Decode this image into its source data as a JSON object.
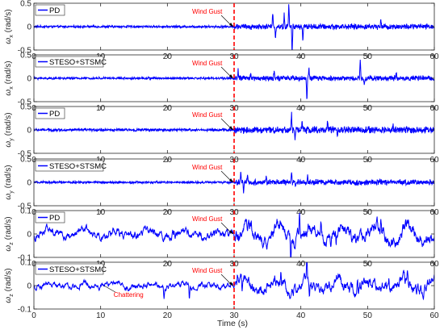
{
  "figure": {
    "xlabel": "Time (s)",
    "colors": {
      "signal": "#0000ff",
      "gust_line": "#ff0000",
      "annotation": "#ff0000",
      "axes": "#262626",
      "background": "#ffffff"
    }
  },
  "chart_data": [
    {
      "type": "line",
      "ylabel_main": "ω",
      "ylabel_sub": "x",
      "ylabel_unit": "(rad/s)",
      "legend": "PD",
      "legend_position": "top-left",
      "annotation": "Wind Gust",
      "xlim": [
        0,
        60
      ],
      "ylim": [
        -0.5,
        0.5
      ],
      "xticks": [
        0,
        10,
        20,
        30,
        40,
        50,
        60
      ],
      "xtick_labels": [
        "0",
        "10",
        "20",
        "30",
        "40",
        "50",
        "60"
      ],
      "yticks": [
        0.5,
        0,
        -0.5
      ],
      "ytick_labels": [
        "0.5",
        "0",
        "-0.5"
      ],
      "gust_time": 30,
      "signal": {
        "pre_amp": 0.025,
        "post_amp": 0.06,
        "spikes": [
          [
            35.8,
            0.35
          ],
          [
            36.2,
            -0.25
          ],
          [
            37.5,
            0.25
          ],
          [
            38.2,
            0.5
          ],
          [
            38.7,
            -0.6
          ],
          [
            40.3,
            -0.3
          ],
          [
            52.0,
            0.18
          ]
        ]
      }
    },
    {
      "type": "line",
      "ylabel_main": "ω",
      "ylabel_sub": "x",
      "ylabel_unit": "(rad/s)",
      "legend": "STESO+STSMC",
      "legend_position": "top-left",
      "annotation": "Wind Gust",
      "xlim": [
        0,
        60
      ],
      "ylim": [
        -0.5,
        0.5
      ],
      "xticks": [
        0,
        10,
        20,
        30,
        40,
        50,
        60
      ],
      "xtick_labels": [
        "0",
        "10",
        "20",
        "30",
        "40",
        "50",
        "60"
      ],
      "yticks": [
        0.5,
        0,
        -0.5
      ],
      "ytick_labels": [
        "0.5",
        "0",
        "-0.5"
      ],
      "gust_time": 30,
      "signal": {
        "pre_amp": 0.025,
        "post_amp": 0.055,
        "spikes": [
          [
            30.6,
            0.18
          ],
          [
            32.5,
            0.15
          ],
          [
            36.0,
            0.2
          ],
          [
            40.9,
            -0.5
          ],
          [
            41.2,
            0.22
          ],
          [
            48.9,
            0.4
          ],
          [
            49.5,
            -0.12
          ],
          [
            54.3,
            0.12
          ]
        ]
      }
    },
    {
      "type": "line",
      "ylabel_main": "ω",
      "ylabel_sub": "y",
      "ylabel_unit": "(rad/s)",
      "legend": "PD",
      "legend_position": "top-left",
      "annotation": "Wind Gust",
      "xlim": [
        0,
        60
      ],
      "ylim": [
        -0.5,
        0.5
      ],
      "xticks": [
        0,
        10,
        20,
        30,
        40,
        50,
        60
      ],
      "xtick_labels": [
        "0",
        "10",
        "20",
        "30",
        "40",
        "50",
        "60"
      ],
      "yticks": [
        0.5,
        0,
        -0.5
      ],
      "ytick_labels": [
        "0.5",
        "0",
        "-0.5"
      ],
      "gust_time": 30,
      "signal": {
        "pre_amp": 0.03,
        "post_amp": 0.075,
        "spikes": [
          [
            38.6,
            0.35
          ],
          [
            39.1,
            -0.2
          ],
          [
            40.2,
            0.2
          ],
          [
            44.0,
            0.15
          ],
          [
            45.5,
            -0.15
          ],
          [
            53.8,
            0.12
          ]
        ]
      }
    },
    {
      "type": "line",
      "ylabel_main": "ω",
      "ylabel_sub": "y",
      "ylabel_unit": "(rad/s)",
      "legend": "STESO+STSMC",
      "legend_position": "top-left",
      "annotation": "Wind Gust",
      "xlim": [
        0,
        60
      ],
      "ylim": [
        -0.5,
        0.5
      ],
      "xticks": [
        0,
        10,
        20,
        30,
        40,
        50,
        60
      ],
      "xtick_labels": [
        "0",
        "10",
        "20",
        "30",
        "40",
        "50",
        "60"
      ],
      "yticks": [
        0.5,
        0,
        -0.5
      ],
      "ytick_labels": [
        "0.5",
        "0",
        "-0.5"
      ],
      "gust_time": 30,
      "signal": {
        "pre_amp": 0.025,
        "post_amp": 0.06,
        "spikes": [
          [
            31.0,
            0.25
          ],
          [
            31.4,
            -0.2
          ],
          [
            32.0,
            0.18
          ],
          [
            34.8,
            0.12
          ],
          [
            38.6,
            0.28
          ],
          [
            39.2,
            -0.15
          ],
          [
            41.0,
            0.15
          ]
        ]
      }
    },
    {
      "type": "line",
      "ylabel_main": "ω",
      "ylabel_sub": "z",
      "ylabel_unit": "(rad/s)",
      "legend": "PD",
      "legend_position": "top-left",
      "annotation": "Wind Gust",
      "xlim": [
        0,
        60
      ],
      "ylim": [
        -0.1,
        0.1
      ],
      "xticks": [
        0,
        10,
        20,
        30,
        40,
        50,
        60
      ],
      "xtick_labels": [
        "0",
        "10",
        "20",
        "30",
        "40",
        "50",
        "60"
      ],
      "yticks": [
        0.1,
        0,
        -0.1
      ],
      "ytick_labels": [
        "0.1",
        "0",
        "-0.1"
      ],
      "gust_time": 30,
      "signal": {
        "pre_amp": 0.018,
        "post_amp": 0.03,
        "spikes": [
          [
            38.5,
            -0.09
          ],
          [
            39.8,
            0.08
          ],
          [
            43.0,
            0.06
          ],
          [
            45.3,
            -0.05
          ],
          [
            52.0,
            0.05
          ]
        ]
      }
    },
    {
      "type": "line",
      "ylabel_main": "ω",
      "ylabel_sub": "z",
      "ylabel_unit": "(rad/s)",
      "legend": "STESO+STSMC",
      "legend_position": "top-left",
      "annotation": "Wind Gust",
      "annotation2": "Chattering",
      "annotation2_x": 10.5,
      "xlim": [
        0,
        60
      ],
      "ylim": [
        -0.1,
        0.1
      ],
      "xticks": [
        0,
        10,
        20,
        30,
        40,
        50,
        60
      ],
      "xtick_labels": [
        "0",
        "10",
        "20",
        "30",
        "40",
        "50",
        "60"
      ],
      "yticks": [
        0.1,
        0,
        -0.1
      ],
      "ytick_labels": [
        "0.1",
        "0",
        "-0.1"
      ],
      "gust_time": 30,
      "signal": {
        "pre_amp": 0.012,
        "post_amp": 0.025,
        "spikes": [
          [
            19.5,
            -0.05
          ],
          [
            23.3,
            -0.07
          ],
          [
            30.5,
            0.04
          ],
          [
            31.2,
            -0.07
          ],
          [
            37.0,
            0.05
          ],
          [
            40.9,
            0.1
          ],
          [
            41.3,
            -0.05
          ],
          [
            48.5,
            0.05
          ],
          [
            53.2,
            0.07
          ],
          [
            56.0,
            0.05
          ]
        ]
      }
    }
  ]
}
